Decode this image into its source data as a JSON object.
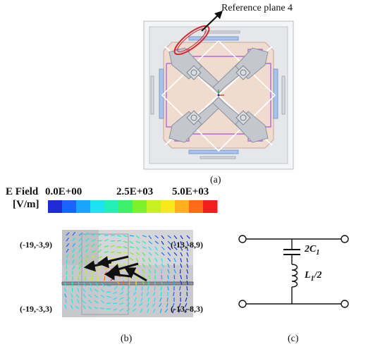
{
  "panel_a": {
    "annotation": "Reference plane 4",
    "caption": "(a)"
  },
  "colorbar": {
    "title": "E Field",
    "unit": "[V/m]",
    "tick_min": "0.0E+00",
    "tick_mid": "2.5E+03",
    "tick_max": "5.0E+03",
    "colors": [
      "#1f2bd6",
      "#1a63ff",
      "#18a4ff",
      "#1de3f0",
      "#22f0b8",
      "#3cf06a",
      "#7cf02a",
      "#c6f020",
      "#f6e81a",
      "#ffb01a",
      "#ff6a1a",
      "#f01e1e"
    ]
  },
  "panel_b": {
    "corner_top_left": "(-19,-3,9)",
    "corner_top_right": "(-13,-8,9)",
    "corner_bottom_left": "(-19,-3,3)",
    "corner_bottom_right": "(-13,-8,3)",
    "caption": "(b)"
  },
  "panel_c": {
    "capacitor_label": "2C",
    "capacitor_sub": "1",
    "inductor_label": "L",
    "inductor_sub": "1",
    "inductor_suffix": "/2",
    "caption": "(c)"
  }
}
